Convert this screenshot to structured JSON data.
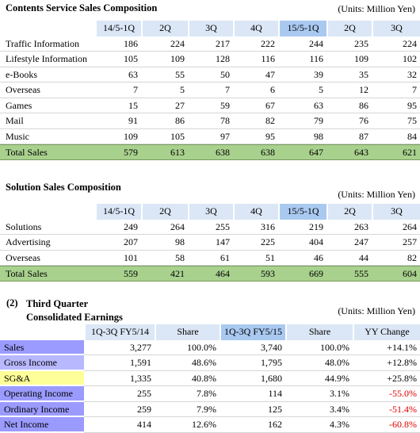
{
  "contents": {
    "title": "Contents Service Sales Composition",
    "units": "(Units:   Million Yen)",
    "header": [
      "14/5-1Q",
      "2Q",
      "3Q",
      "4Q",
      "15/5-1Q",
      "2Q",
      "3Q"
    ],
    "rows": [
      [
        "Traffic Information",
        186,
        224,
        217,
        222,
        244,
        235,
        224
      ],
      [
        "Lifestyle Information",
        105,
        109,
        128,
        116,
        116,
        109,
        102
      ],
      [
        "e-Books",
        63,
        55,
        50,
        47,
        39,
        35,
        32
      ],
      [
        "Overseas",
        7,
        5,
        7,
        6,
        5,
        12,
        7
      ],
      [
        "Games",
        15,
        27,
        59,
        67,
        63,
        86,
        95
      ],
      [
        "Mail",
        91,
        86,
        78,
        82,
        79,
        76,
        75
      ],
      [
        "Music",
        109,
        105,
        97,
        95,
        98,
        87,
        84
      ],
      [
        "Total Sales",
        579,
        613,
        638,
        638,
        647,
        643,
        621
      ]
    ]
  },
  "solution": {
    "title": "Solution Sales Composition",
    "units": "(Units:   Million Yen)",
    "header": [
      "14/5-1Q",
      "2Q",
      "3Q",
      "4Q",
      "15/5-1Q",
      "2Q",
      "3Q"
    ],
    "rows": [
      [
        "Solutions",
        249,
        264,
        255,
        316,
        219,
        263,
        264
      ],
      [
        "Advertising",
        207,
        98,
        147,
        225,
        404,
        247,
        257
      ],
      [
        "Overseas",
        101,
        58,
        61,
        51,
        46,
        44,
        82
      ],
      [
        "Total Sales",
        559,
        421,
        464,
        593,
        669,
        555,
        604
      ]
    ]
  },
  "earnings": {
    "number": "(2)",
    "title": "Third Quarter Consolidated Earnings",
    "units": "(Units:   Million Yen)",
    "header": [
      "1Q-3Q FY5/14",
      "Share",
      "1Q-3Q FY5/15",
      "Share",
      "YY Change"
    ],
    "rows": [
      [
        "Sales",
        "3,277",
        "100.0%",
        "3,740",
        "100.0%",
        "+14.1%"
      ],
      [
        "Gross Income",
        "1,591",
        "48.6%",
        "1,795",
        "48.0%",
        "+12.8%"
      ],
      [
        "SG&A",
        "1,335",
        "40.8%",
        "1,680",
        "44.9%",
        "+25.8%"
      ],
      [
        "Operating Income",
        255,
        "7.8%",
        114,
        "3.1%",
        "-55.0%"
      ],
      [
        "Ordinary Income",
        259,
        "7.9%",
        125,
        "3.4%",
        "-51.4%"
      ],
      [
        "Net Income",
        414,
        "12.6%",
        162,
        "4.3%",
        "-60.8%"
      ]
    ]
  }
}
